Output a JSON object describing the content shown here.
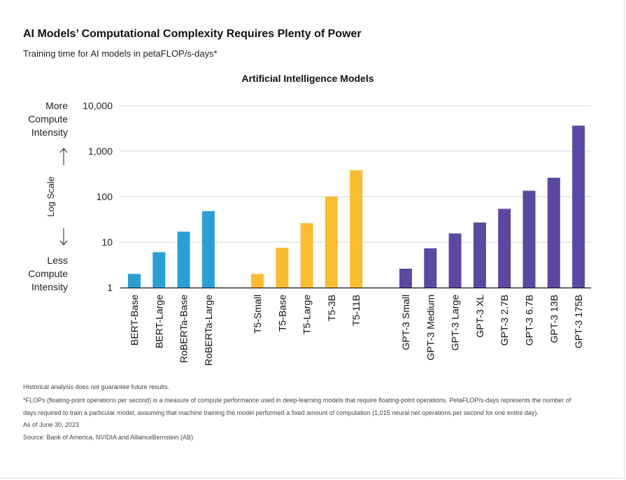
{
  "header": {
    "title": "AI Models’ Computational Complexity Requires Plenty of Power",
    "subtitle": "Training time for AI models in petaFLOP/s-days*"
  },
  "chart_data": {
    "type": "bar",
    "title": "Artificial Intelligence Models",
    "ylabel": "Log Scale",
    "yscale": "log",
    "ylim": [
      1,
      10000
    ],
    "yticks": [
      1,
      10,
      100,
      1000,
      10000
    ],
    "ytick_labels": [
      "1",
      "10",
      "100",
      "1,000",
      "10,000"
    ],
    "y_annotations": {
      "top": [
        "More",
        "Compute",
        "Intensity"
      ],
      "bottom": [
        "Less",
        "Compute",
        "Intensity"
      ]
    },
    "groups": [
      {
        "color": "#2a9fd6",
        "categories": [
          "BERT-Base",
          "BERT-Large",
          "RoBERTa-Base",
          "RoBERTa-Large"
        ],
        "values": [
          2.0,
          6.0,
          17.0,
          48.0
        ]
      },
      {
        "color": "#fbbd2e",
        "categories": [
          "T5-Small",
          "T5-Base",
          "T5-Large",
          "T5-3B",
          "T5-11B"
        ],
        "values": [
          2.0,
          7.5,
          26.0,
          100.0,
          380.0
        ]
      },
      {
        "color": "#5b48a2",
        "categories": [
          "GPT-3 Small",
          "GPT-3 Medium",
          "GPT-3 Large",
          "GPT-3 XL",
          "GPT-3 2.7B",
          "GPT-3 6.7B",
          "GPT-3 13B",
          "GPT-3 175B"
        ],
        "values": [
          2.6,
          7.3,
          15.5,
          27.0,
          54.0,
          135.0,
          260.0,
          3640.0
        ]
      }
    ],
    "grid": true,
    "legend": "none"
  },
  "footnotes": {
    "disclaimer": "Historical analysis does not guarantee future results.",
    "flops_line1": "*FLOPs (floating-point operations per second) is a measure of compute performance used in deep-learning models that require floating-point operations. PetaFLOP/s-days represents the number of",
    "flops_line2": "days required to train a particular model, assuming that machine training the model performed a fixed amount of computation (1,015 neural net operations per second for one entire day).",
    "as_of": "As of June 30, 2023",
    "source": "Source: Bank of America, NVIDIA and AllianceBernstein (AB)"
  }
}
